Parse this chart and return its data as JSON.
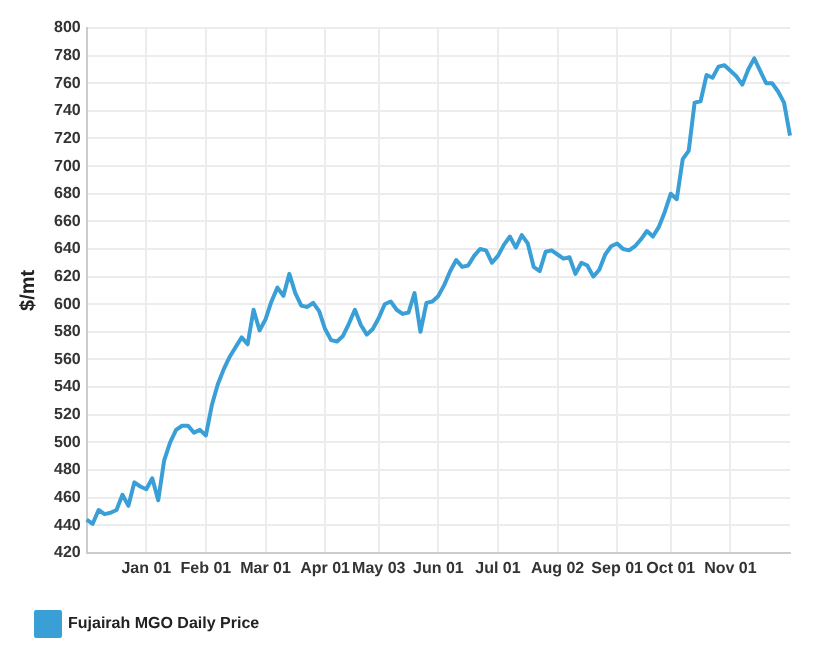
{
  "chart_data": {
    "type": "line",
    "ylabel": "$/mt",
    "ylim": [
      420,
      800
    ],
    "yticks": [
      420,
      440,
      460,
      480,
      500,
      520,
      540,
      560,
      580,
      600,
      620,
      640,
      660,
      680,
      700,
      720,
      740,
      760,
      780,
      800
    ],
    "categories": [
      null,
      null,
      null,
      null,
      null,
      null,
      null,
      null,
      null,
      null,
      "Jan 01",
      null,
      null,
      null,
      null,
      null,
      null,
      null,
      null,
      null,
      "Feb 01",
      null,
      null,
      null,
      null,
      null,
      null,
      null,
      null,
      null,
      "Mar 01",
      null,
      null,
      null,
      null,
      null,
      null,
      null,
      null,
      null,
      "Apr 01",
      null,
      null,
      null,
      null,
      null,
      null,
      null,
      null,
      "May 03",
      null,
      null,
      null,
      null,
      null,
      null,
      null,
      null,
      null,
      "Jun 01",
      null,
      null,
      null,
      null,
      null,
      null,
      null,
      null,
      null,
      "Jul 01",
      null,
      null,
      null,
      null,
      null,
      null,
      null,
      null,
      null,
      "Aug 02",
      null,
      null,
      null,
      null,
      null,
      null,
      null,
      null,
      null,
      "Sep 01",
      null,
      null,
      null,
      null,
      null,
      null,
      null,
      null,
      "Oct 01",
      null,
      null,
      null,
      null,
      null,
      null,
      null,
      null,
      null,
      "Nov 01",
      null,
      null,
      null,
      null,
      null,
      null,
      null,
      null,
      null,
      null
    ],
    "grid": true,
    "legend": "bottom left",
    "marker": "none",
    "line_style": "solid",
    "series": [
      {
        "name": "Fujairah MGO Daily Price",
        "color": "#3a9fd6",
        "values": [
          444,
          441,
          451,
          448,
          449,
          451,
          462,
          454,
          471,
          468,
          466,
          474,
          458,
          487,
          500,
          509,
          512,
          512,
          507,
          509,
          505,
          527,
          542,
          553,
          562,
          569,
          576,
          571,
          596,
          581,
          589,
          602,
          612,
          606,
          622,
          608,
          599,
          598,
          601,
          595,
          582,
          574,
          573,
          577,
          586,
          596,
          585,
          578,
          582,
          590,
          600,
          602,
          596,
          593,
          594,
          608,
          580,
          601,
          602,
          606,
          614,
          624,
          632,
          627,
          628,
          635,
          640,
          639,
          630,
          635,
          643,
          649,
          641,
          650,
          644,
          627,
          624,
          638,
          639,
          636,
          633,
          634,
          622,
          630,
          628,
          620,
          625,
          636,
          642,
          644,
          640,
          639,
          642,
          647,
          653,
          649,
          656,
          667,
          680,
          676,
          705,
          711,
          746,
          747,
          766,
          764,
          772,
          773,
          769,
          765,
          759,
          770,
          778,
          769,
          760,
          760,
          754,
          746,
          722
        ]
      }
    ]
  }
}
